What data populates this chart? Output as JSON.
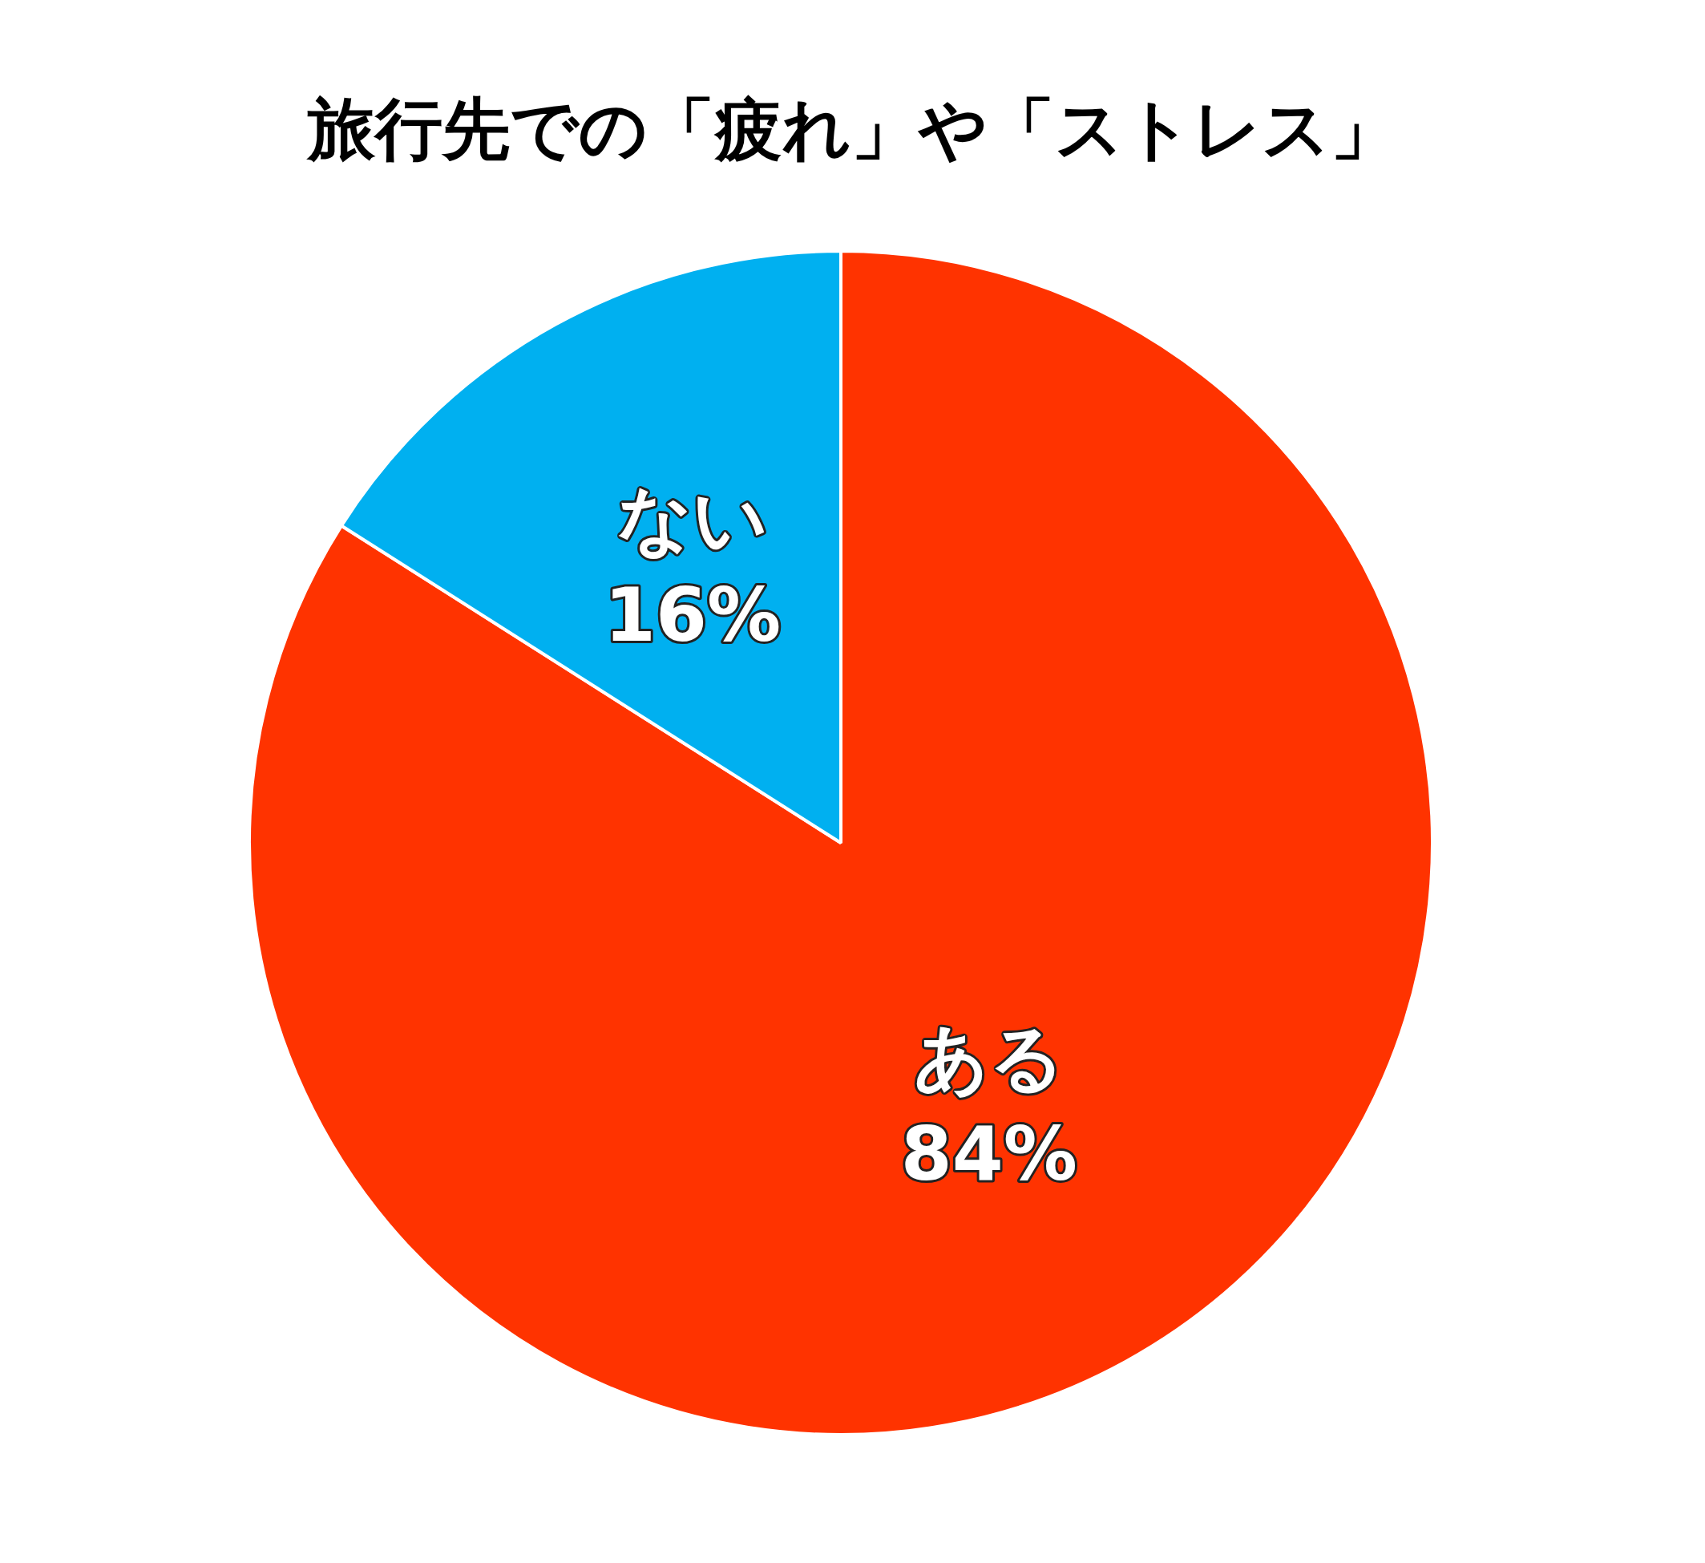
{
  "chart_data": {
    "type": "pie",
    "title": "旅行先での「疲れ」や「ストレス」",
    "categories": [
      "ある",
      "ない"
    ],
    "values": [
      84,
      16
    ],
    "colors": [
      "#ff3300",
      "#00b0f0"
    ],
    "value_labels": [
      "84%",
      "16%"
    ]
  }
}
